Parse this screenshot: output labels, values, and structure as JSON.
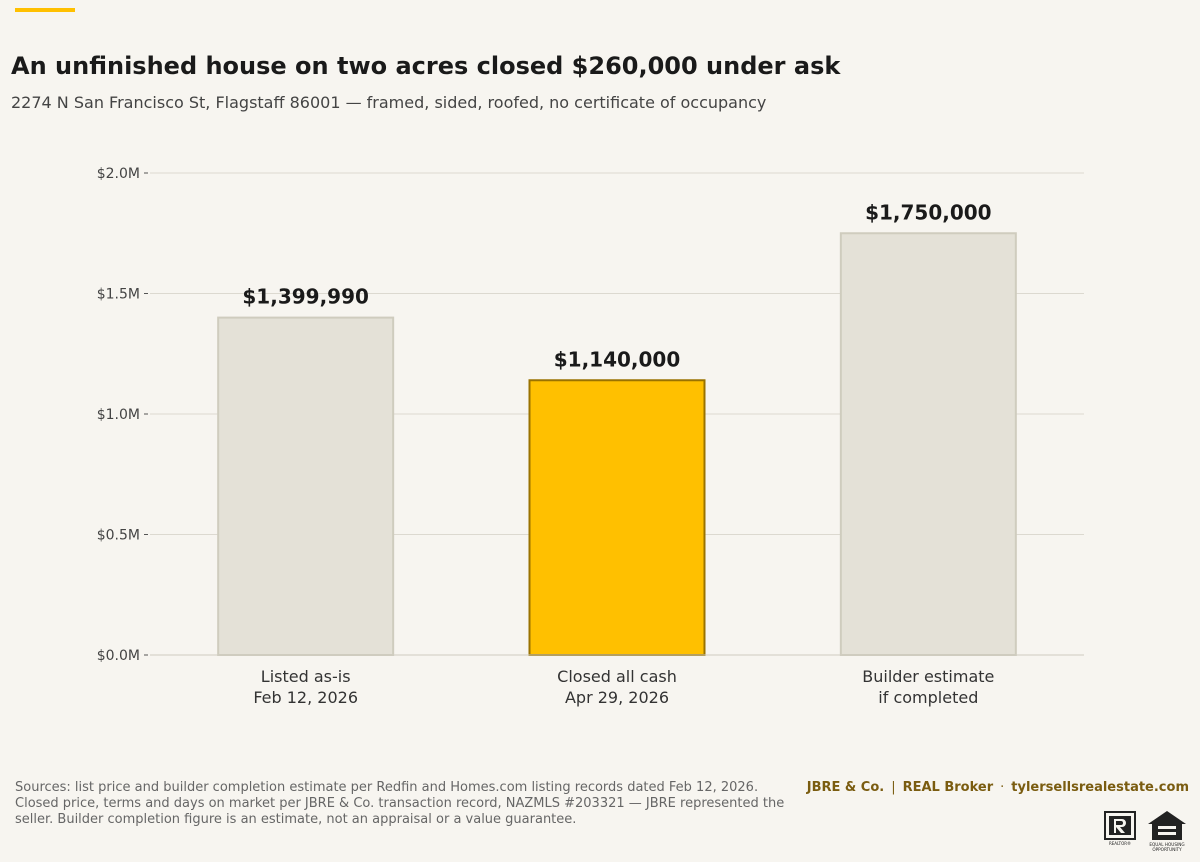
{
  "header": {
    "title": "An unfinished house on two acres closed $260,000 under ask",
    "subtitle": "2274 N San Francisco St, Flagstaff 86001 — framed, sided, roofed, no certificate of occupancy"
  },
  "chart_data": {
    "type": "bar",
    "categories": [
      [
        "Listed as-is",
        "Feb 12, 2026"
      ],
      [
        "Closed all cash",
        "Apr 29, 2026"
      ],
      [
        "Builder estimate",
        "if completed"
      ]
    ],
    "values": [
      1399990,
      1140000,
      1750000
    ],
    "value_labels": [
      "$1,399,990",
      "$1,140,000",
      "$1,750,000"
    ],
    "ylim": [
      0,
      2000000
    ],
    "yticks": [
      0,
      500000,
      1000000,
      1500000,
      2000000
    ],
    "ytick_labels": [
      "$0.0M",
      "$0.5M",
      "$1.0M",
      "$1.5M",
      "$2.0M"
    ],
    "highlight_index": 1,
    "grid": true,
    "colors": {
      "bar": "#e4e1d7",
      "bar_edge": "#cfccbe",
      "highlight": "#ffc000",
      "highlight_edge": "#9a7200",
      "grid": "#dcd9d0"
    }
  },
  "footer": {
    "sources": "Sources: list price and builder completion estimate per Redfin and Homes.com listing records dated Feb 12, 2026. Closed price, terms and days on market per JBRE & Co. transaction record, NAZMLS #203321 — JBRE represented the seller. Builder completion figure is an estimate, not an appraisal or a value guarantee.",
    "brand_name": "JBRE & Co.",
    "brokerage": "REAL Broker",
    "website": "tylersellsrealestate.com",
    "separator_1": "|",
    "separator_2": "·"
  },
  "logos": {
    "realtor_icon": "realtor-r-logo",
    "equal_housing_icon": "equal-housing-opportunity-logo",
    "realtor_text": "REALTOR®",
    "eho_text_1": "EQUAL HOUSING",
    "eho_text_2": "OPPORTUNITY"
  }
}
